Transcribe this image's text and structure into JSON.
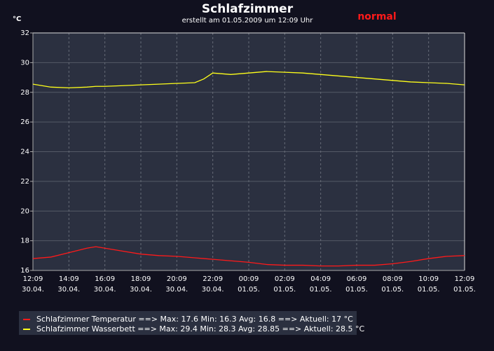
{
  "chart_data": {
    "type": "line",
    "title": "Schlafzimmer",
    "subtitle": "erstellt am 01.05.2009 um 12:09 Uhr",
    "status": "normal",
    "y_unit": "°C",
    "x": [
      0,
      1,
      2,
      3,
      3.5,
      4,
      5,
      6,
      7,
      8,
      9,
      9.5,
      10,
      11,
      12,
      13,
      14,
      15,
      16,
      17,
      18,
      19,
      20,
      21,
      22,
      23,
      24
    ],
    "series": [
      {
        "name": "Schlafzimmer Temperatur ==> Max: 17.6  Min: 16.3  Avg: 16.8 ==> Aktuell: 17 °C",
        "color": "#ff1a1a",
        "values": [
          16.8,
          16.9,
          17.2,
          17.5,
          17.6,
          17.5,
          17.3,
          17.1,
          17.0,
          16.95,
          16.85,
          16.8,
          16.75,
          16.65,
          16.55,
          16.4,
          16.35,
          16.35,
          16.3,
          16.3,
          16.35,
          16.35,
          16.45,
          16.6,
          16.8,
          16.95,
          17.0
        ]
      },
      {
        "name": "Schlafzimmer Wasserbett ==> Max: 29.4  Min: 28.3  Avg: 28.85 ==> Aktuell: 28.5 °C",
        "color": "#ffff1a",
        "values": [
          28.55,
          28.35,
          28.3,
          28.35,
          28.4,
          28.4,
          28.45,
          28.5,
          28.55,
          28.6,
          28.65,
          28.9,
          29.3,
          29.2,
          29.3,
          29.4,
          29.35,
          29.3,
          29.2,
          29.1,
          29.0,
          28.9,
          28.8,
          28.7,
          28.65,
          28.6,
          28.5
        ]
      }
    ],
    "xlim": [
      0,
      24
    ],
    "xticks": [
      {
        "value": 0,
        "label": "12:09",
        "date": "30.04."
      },
      {
        "value": 2,
        "label": "14:09",
        "date": "30.04."
      },
      {
        "value": 4,
        "label": "16:09",
        "date": "30.04."
      },
      {
        "value": 6,
        "label": "18:09",
        "date": "30.04."
      },
      {
        "value": 8,
        "label": "20:09",
        "date": "30.04."
      },
      {
        "value": 10,
        "label": "22:09",
        "date": "30.04."
      },
      {
        "value": 12,
        "label": "00:09",
        "date": "01.05."
      },
      {
        "value": 14,
        "label": "02:09",
        "date": "01.05."
      },
      {
        "value": 16,
        "label": "04:09",
        "date": "01.05."
      },
      {
        "value": 18,
        "label": "06:09",
        "date": "01.05."
      },
      {
        "value": 20,
        "label": "08:09",
        "date": "01.05."
      },
      {
        "value": 22,
        "label": "10:09",
        "date": "01.05."
      },
      {
        "value": 24,
        "label": "12:09",
        "date": "01.05."
      }
    ],
    "ylim": [
      16,
      32
    ],
    "yticks": [
      16,
      18,
      20,
      22,
      24,
      26,
      28,
      30,
      32
    ],
    "grid": true
  }
}
